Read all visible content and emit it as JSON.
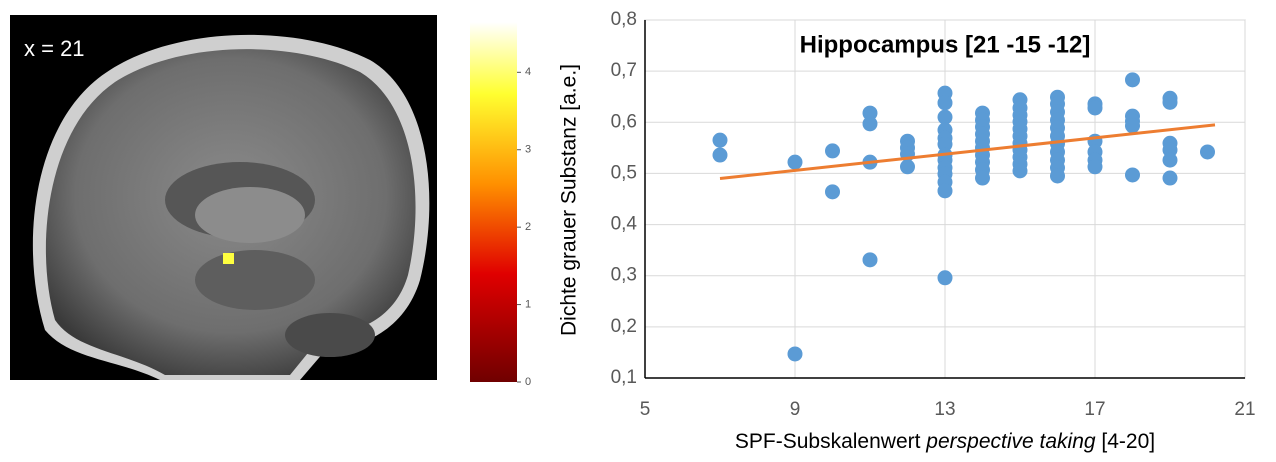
{
  "image_panel": {
    "label": "x = 21",
    "colorbar": {
      "lim": [
        0,
        4.65
      ],
      "ticks": [
        0,
        1,
        2,
        3,
        4
      ]
    }
  },
  "chart_data": {
    "type": "scatter",
    "title": "Hippocampus  [21 -15 -12]",
    "ylabel": "Dichte grauer Substanz [a.e.]",
    "xlabel_parts": [
      "SPF-Subskalenwert",
      "perspective taking",
      "[4-20]"
    ],
    "color": "#5b9bd5",
    "x": [
      7,
      7,
      9,
      9,
      10,
      10,
      11,
      11,
      11,
      11,
      12,
      12,
      12,
      12,
      13,
      13,
      13,
      13,
      13,
      13,
      13,
      13,
      13,
      13,
      13,
      13,
      13,
      14,
      14,
      14,
      14,
      14,
      14,
      14,
      14,
      14,
      14,
      15,
      15,
      15,
      15,
      15,
      15,
      15,
      15,
      15,
      15,
      15,
      16,
      16,
      16,
      16,
      16,
      16,
      16,
      16,
      16,
      16,
      16,
      17,
      17,
      17,
      17,
      17,
      17,
      18,
      18,
      18,
      18,
      18,
      19,
      19,
      19,
      19,
      19,
      19,
      20
    ],
    "values": [
      0.565,
      0.536,
      0.522,
      0.147,
      0.544,
      0.464,
      0.618,
      0.597,
      0.522,
      0.331,
      0.563,
      0.55,
      0.538,
      0.513,
      0.657,
      0.638,
      0.61,
      0.585,
      0.569,
      0.557,
      0.536,
      0.526,
      0.511,
      0.499,
      0.483,
      0.466,
      0.296,
      0.618,
      0.604,
      0.591,
      0.577,
      0.563,
      0.55,
      0.536,
      0.522,
      0.507,
      0.491,
      0.644,
      0.628,
      0.614,
      0.601,
      0.587,
      0.573,
      0.559,
      0.546,
      0.532,
      0.518,
      0.505,
      0.649,
      0.636,
      0.62,
      0.604,
      0.589,
      0.573,
      0.558,
      0.542,
      0.526,
      0.511,
      0.495,
      0.636,
      0.628,
      0.563,
      0.542,
      0.526,
      0.513,
      0.683,
      0.612,
      0.602,
      0.593,
      0.497,
      0.647,
      0.639,
      0.559,
      0.546,
      0.526,
      0.491,
      0.542
    ],
    "trendline": {
      "color": "#ed7d31",
      "x": [
        7,
        20.2
      ],
      "values": [
        0.49,
        0.595
      ]
    },
    "xlim": [
      5,
      21
    ],
    "xticks": [
      5,
      9,
      13,
      17,
      21
    ],
    "ylim": [
      0.1,
      0.8
    ],
    "yticks": [
      {
        "value": 0.1,
        "label": "0,1"
      },
      {
        "value": 0.2,
        "label": "0,2"
      },
      {
        "value": 0.3,
        "label": "0,3"
      },
      {
        "value": 0.4,
        "label": "0,4"
      },
      {
        "value": 0.5,
        "label": "0,5"
      },
      {
        "value": 0.6,
        "label": "0,6"
      },
      {
        "value": 0.7,
        "label": "0,7"
      },
      {
        "value": 0.8,
        "label": "0,8"
      }
    ],
    "grid": true
  }
}
